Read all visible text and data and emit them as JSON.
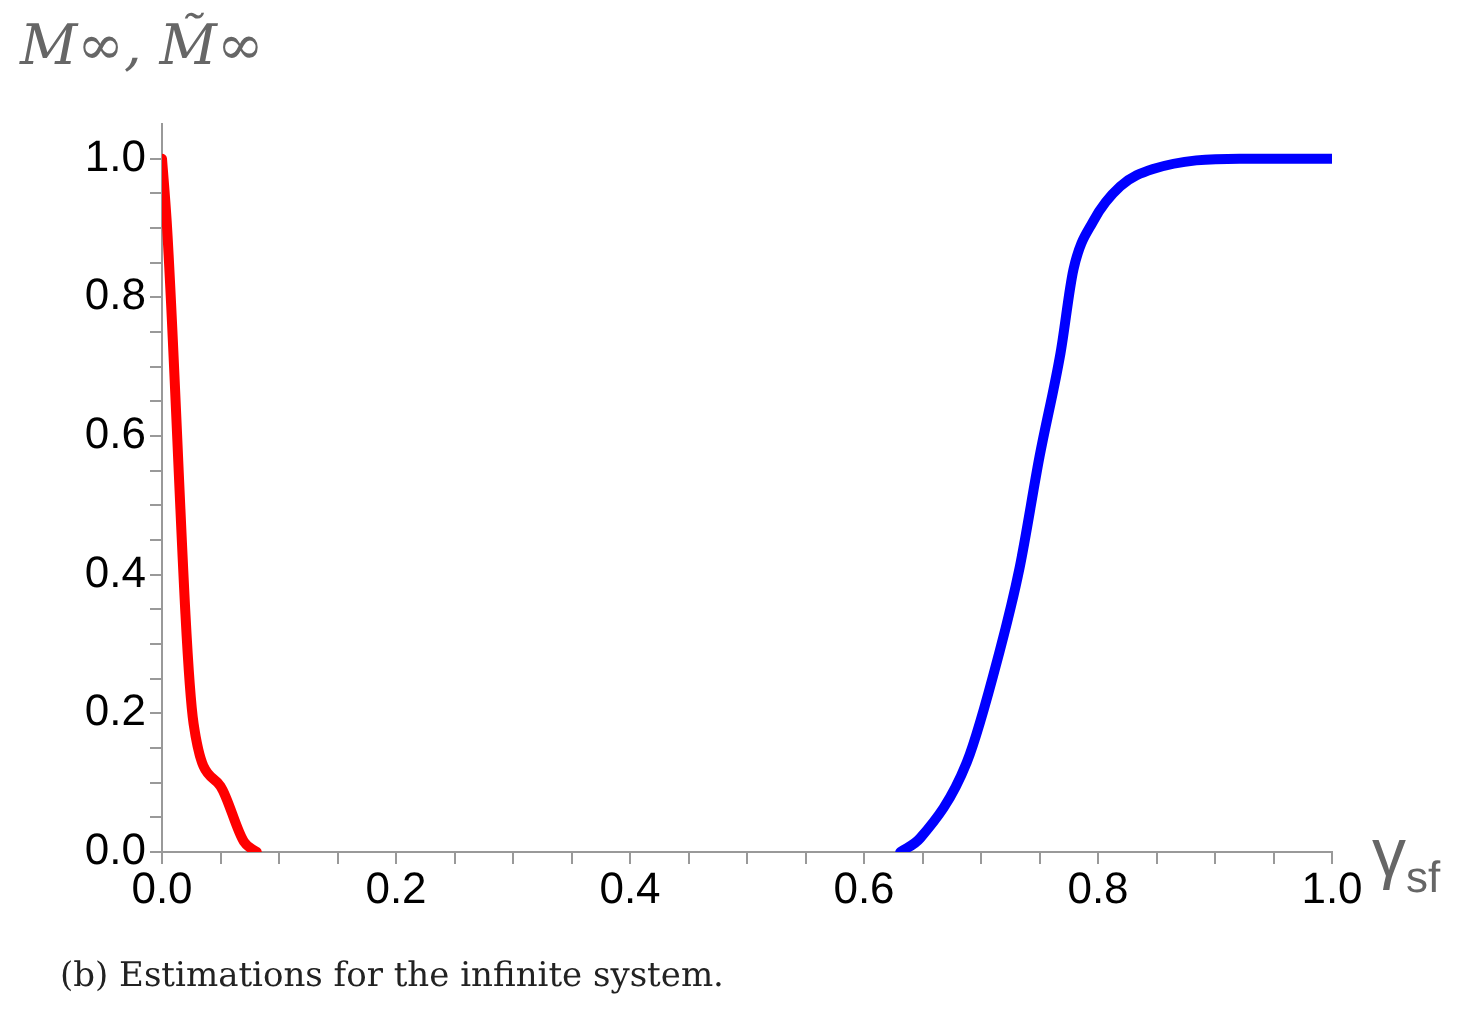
{
  "chart_data": {
    "type": "line",
    "ylabel": "M∞, M̃∞",
    "xlabel": "γ$_{sf}$",
    "annotations": [
      "(b) Estimations for the infinite system."
    ],
    "xlim": [
      0,
      1
    ],
    "ylim": [
      0,
      1.05
    ],
    "xticks": [
      {
        "value": 0,
        "label": "0.0"
      },
      {
        "value": 0.05,
        "label": null
      },
      {
        "value": 0.1,
        "label": null
      },
      {
        "value": 0.15,
        "label": null
      },
      {
        "value": 0.2,
        "label": "0.2"
      },
      {
        "value": 0.25,
        "label": null
      },
      {
        "value": 0.3,
        "label": null
      },
      {
        "value": 0.35,
        "label": null
      },
      {
        "value": 0.4,
        "label": "0.4"
      },
      {
        "value": 0.45,
        "label": null
      },
      {
        "value": 0.5,
        "label": null
      },
      {
        "value": 0.55,
        "label": null
      },
      {
        "value": 0.6,
        "label": "0.6"
      },
      {
        "value": 0.65,
        "label": null
      },
      {
        "value": 0.7,
        "label": null
      },
      {
        "value": 0.75,
        "label": null
      },
      {
        "value": 0.8,
        "label": "0.8"
      },
      {
        "value": 0.85,
        "label": null
      },
      {
        "value": 0.9,
        "label": null
      },
      {
        "value": 0.95,
        "label": null
      },
      {
        "value": 1,
        "label": "1.0"
      }
    ],
    "yticks": [
      {
        "value": 0,
        "label": "0.0"
      },
      {
        "value": 0.05,
        "label": null
      },
      {
        "value": 0.1,
        "label": null
      },
      {
        "value": 0.15,
        "label": null
      },
      {
        "value": 0.2,
        "label": "0.2"
      },
      {
        "value": 0.25,
        "label": null
      },
      {
        "value": 0.3,
        "label": null
      },
      {
        "value": 0.35,
        "label": null
      },
      {
        "value": 0.4,
        "label": "0.4"
      },
      {
        "value": 0.45,
        "label": null
      },
      {
        "value": 0.5,
        "label": null
      },
      {
        "value": 0.55,
        "label": null
      },
      {
        "value": 0.6,
        "label": "0.6"
      },
      {
        "value": 0.65,
        "label": null
      },
      {
        "value": 0.7,
        "label": null
      },
      {
        "value": 0.75,
        "label": null
      },
      {
        "value": 0.8,
        "label": "0.8"
      },
      {
        "value": 0.85,
        "label": null
      },
      {
        "value": 0.9,
        "label": null
      },
      {
        "value": 0.95,
        "label": null
      },
      {
        "value": 1,
        "label": "1.0"
      }
    ],
    "grid": false,
    "legend": false,
    "marker": "none",
    "line_style": "solid",
    "series": [
      {
        "color": "#ff0000",
        "x": [
          0,
          0.004,
          0.027,
          0.05,
          0.07,
          0.081
        ],
        "values": [
          1.0,
          0.91,
          0.185,
          0.095,
          0.015,
          0
        ]
      },
      {
        "color": "#0000ff",
        "x": [
          0.631,
          0.648,
          0.688,
          0.716,
          0.733,
          0.75,
          0.768,
          0.779,
          0.796,
          0.819,
          0.847,
          0.921,
          1.0
        ],
        "values": [
          0,
          0.02,
          0.13,
          0.29,
          0.41,
          0.57,
          0.72,
          0.84,
          0.91,
          0.96,
          0.985,
          1.0,
          1.0
        ]
      }
    ]
  }
}
